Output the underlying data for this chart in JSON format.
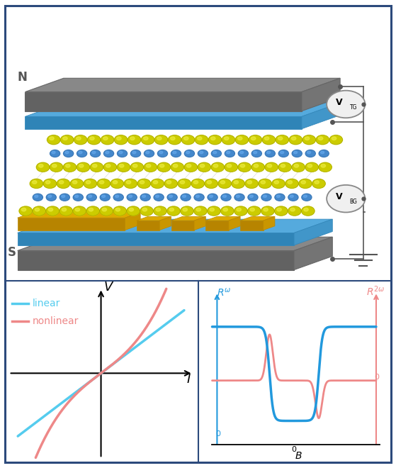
{
  "fig_width": 5.59,
  "fig_height": 6.6,
  "dpi": 100,
  "outer_border_color": "#2c4a7c",
  "top_panel_bg": "#f2e0d8",
  "bottom_left_bg": "#ffffff",
  "bottom_right_bg": "#ffffff",
  "linear_color": "#55ccee",
  "nonlinear_color": "#ee8888",
  "blue_color": "#2299dd",
  "red_color": "#ee8888",
  "label_N": "N",
  "label_S": "S",
  "gray_plate_color": "#888888",
  "gray_plate_edge": "#666666",
  "blue_layer_color": "#55aadd",
  "blue_layer_edge": "#3388bb",
  "gold_contact_color": "#ddaa00",
  "gold_contact_edge": "#bb8800",
  "yellow_ball_color": "#cccc00",
  "yellow_ball_highlight": "#eeee44",
  "blue_ball_color": "#4488cc",
  "blue_ball_highlight": "#66aaee",
  "legend_linear": "linear",
  "legend_nonlinear": "nonlinear",
  "circle_bg": "#f0f0f0",
  "circle_border": "#888888",
  "panel_divider_color": "#2c4a7c"
}
